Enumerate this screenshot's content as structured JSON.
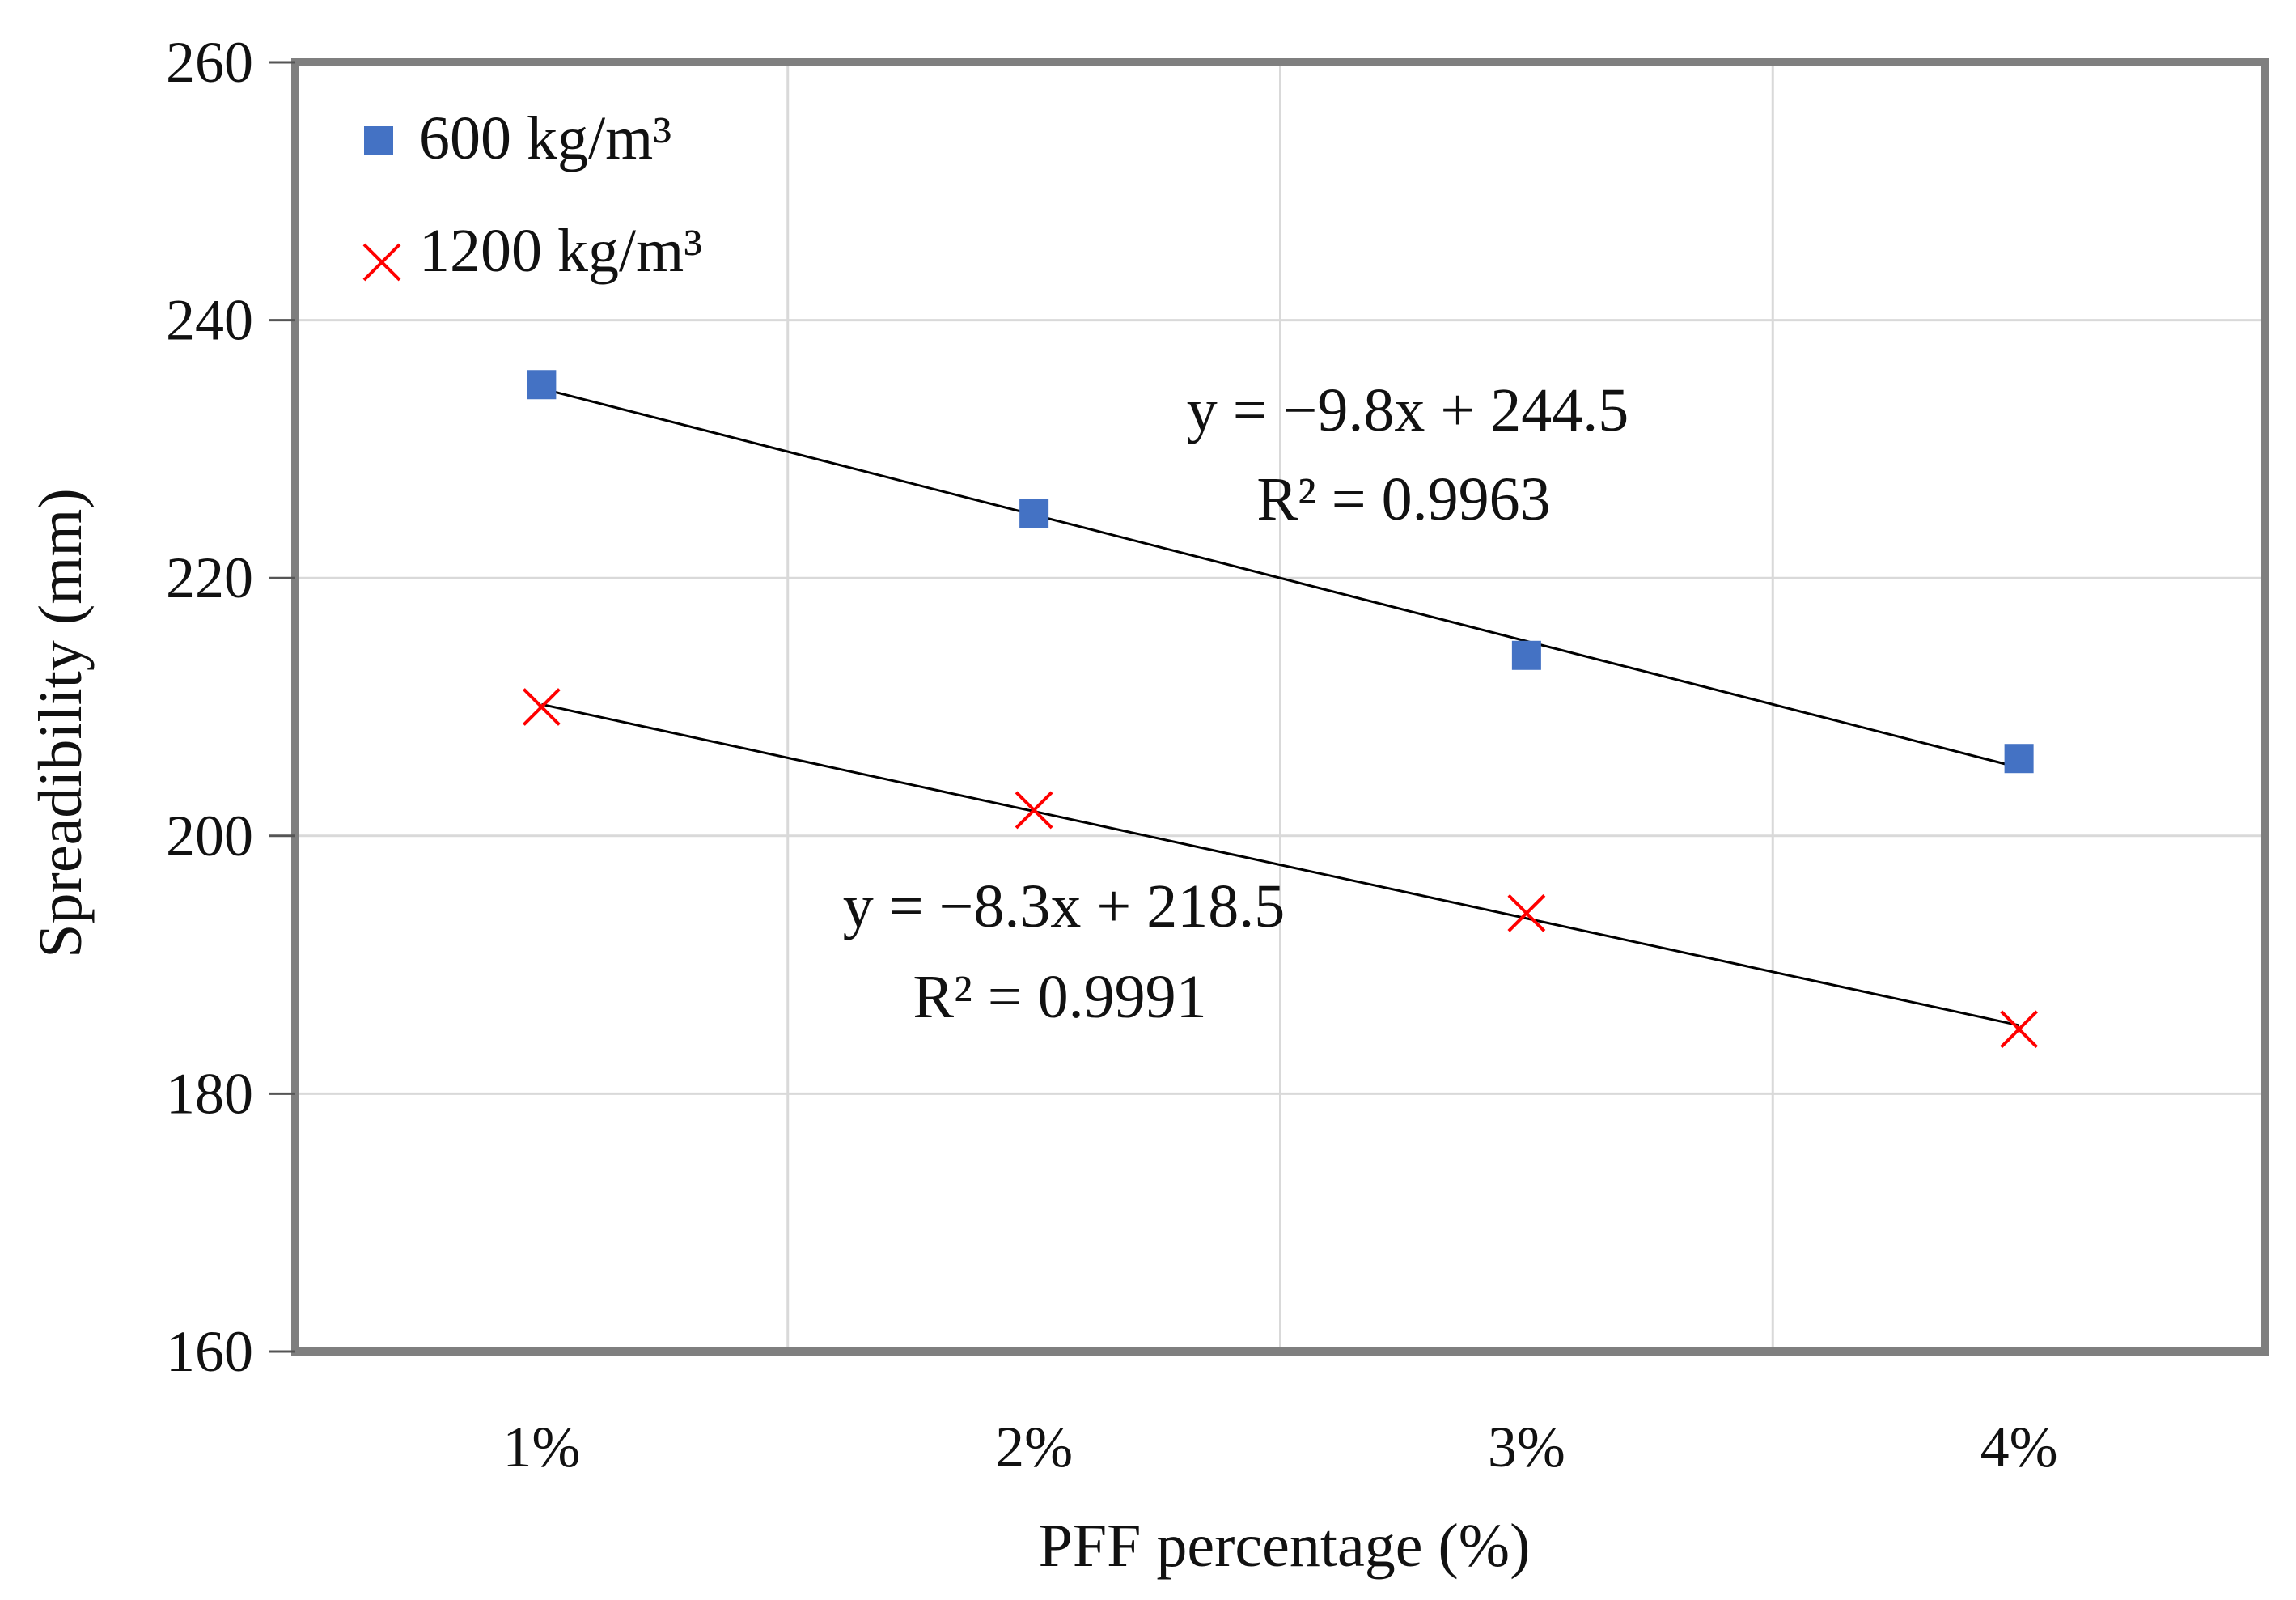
{
  "chart_data": {
    "type": "scatter",
    "title": "",
    "xlabel": "PFF percentage (%)",
    "ylabel": "Spreadibility (mm)",
    "categories": [
      "1%",
      "2%",
      "3%",
      "4%"
    ],
    "x": [
      1,
      2,
      3,
      4
    ],
    "xlim": [
      0.5,
      4.5
    ],
    "ylim": [
      160,
      260
    ],
    "yticks": [
      160,
      180,
      200,
      220,
      240,
      260
    ],
    "grid": true,
    "legend_position": "top-left",
    "series": [
      {
        "name": "600 kg/m³",
        "marker": "square",
        "color": "#4472C4",
        "values": [
          235,
          225,
          214,
          206
        ],
        "trendline": {
          "slope": -9.8,
          "intercept": 244.5,
          "equation": "y = −9.8x + 244.5",
          "r2": "R² = 0.9963"
        }
      },
      {
        "name": "1200 kg/m³",
        "marker": "x",
        "color": "#FF0000",
        "values": [
          210,
          202,
          194,
          185
        ],
        "trendline": {
          "slope": -8.3,
          "intercept": 218.5,
          "equation": "y = −8.3x + 218.5",
          "r2": "R² = 0.9991"
        }
      }
    ]
  }
}
